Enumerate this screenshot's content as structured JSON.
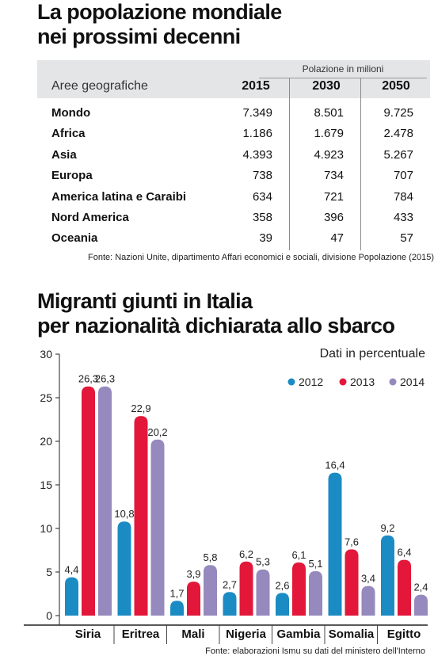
{
  "table_title": [
    "La popolazione mondiale",
    "nei prossimi decenni"
  ],
  "table": {
    "unit_label": "Polazione in milioni",
    "header_geo": "Aree geografiche",
    "years": [
      "2015",
      "2030",
      "2050"
    ],
    "rows": [
      {
        "area": "Mondo",
        "values": [
          "7.349",
          "8.501",
          "9.725"
        ]
      },
      {
        "area": "Africa",
        "values": [
          "1.186",
          "1.679",
          "2.478"
        ]
      },
      {
        "area": "Asia",
        "values": [
          "4.393",
          "4.923",
          "5.267"
        ]
      },
      {
        "area": "Europa",
        "values": [
          "738",
          "734",
          "707"
        ]
      },
      {
        "area": "America latina e Caraibi",
        "values": [
          "634",
          "721",
          "784"
        ]
      },
      {
        "area": "Nord America",
        "values": [
          "358",
          "396",
          "433"
        ]
      },
      {
        "area": "Oceania",
        "values": [
          "39",
          "47",
          "57"
        ]
      }
    ],
    "source": "Fonte: Nazioni Unite, dipartimento Affari economici e sociali, divisione Popolazione (2015)"
  },
  "chart_title": [
    "Migranti giunti in Italia",
    "per nazionalità dichiarata allo sbarco"
  ],
  "chart_data": {
    "type": "bar",
    "subtitle": "Dati in percentuale",
    "categories": [
      "Siria",
      "Eritrea",
      "Mali",
      "Nigeria",
      "Gambia",
      "Somalia",
      "Egitto"
    ],
    "series": [
      {
        "name": "2012",
        "color": "#1b8bc3",
        "values": [
          4.4,
          10.8,
          1.7,
          2.7,
          2.6,
          16.4,
          9.2
        ],
        "labels": [
          "4,4",
          "10,8",
          "1,7",
          "2,7",
          "2,6",
          "16,4",
          "9,2"
        ]
      },
      {
        "name": "2013",
        "color": "#e3173a",
        "values": [
          26.3,
          22.9,
          3.9,
          6.2,
          6.1,
          7.6,
          6.4
        ],
        "labels": [
          "26,3",
          "22,9",
          "3,9",
          "6,2",
          "6,1",
          "7,6",
          "6,4"
        ]
      },
      {
        "name": "2014",
        "color": "#9589bd",
        "values": [
          26.3,
          20.2,
          5.8,
          5.3,
          5.1,
          3.4,
          2.4
        ],
        "labels": [
          "26,3",
          "20,2",
          "5,8",
          "5,3",
          "5,1",
          "3,4",
          "2,4"
        ]
      }
    ],
    "yticks": [
      "0",
      "5",
      "10",
      "15",
      "20",
      "25",
      "30"
    ],
    "ylim": [
      0,
      30
    ],
    "legend_position": "top-right",
    "grid": false,
    "source": "Fonte: elaborazioni Ismu su dati del ministero dell'Interno"
  }
}
